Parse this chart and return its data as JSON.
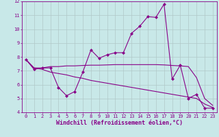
{
  "xlabel": "Windchill (Refroidissement éolien,°C)",
  "background_color": "#c8e8e8",
  "line_color": "#880088",
  "grid_color": "#b0c8c8",
  "x_values": [
    0,
    1,
    2,
    3,
    4,
    5,
    6,
    7,
    8,
    9,
    10,
    11,
    12,
    13,
    14,
    15,
    16,
    17,
    18,
    19,
    20,
    21,
    22,
    23
  ],
  "line1_y": [
    7.8,
    7.1,
    7.2,
    7.2,
    5.8,
    5.2,
    5.5,
    6.9,
    8.5,
    7.9,
    8.15,
    8.3,
    8.3,
    9.7,
    10.2,
    10.9,
    10.85,
    11.8,
    6.4,
    7.4,
    5.0,
    5.3,
    4.3,
    4.3
  ],
  "line2_y": [
    7.8,
    7.2,
    7.2,
    7.3,
    7.3,
    7.35,
    7.35,
    7.38,
    7.4,
    7.4,
    7.42,
    7.44,
    7.44,
    7.44,
    7.44,
    7.44,
    7.44,
    7.42,
    7.38,
    7.35,
    7.3,
    6.5,
    5.0,
    4.5
  ],
  "line3_y": [
    7.8,
    7.2,
    7.1,
    6.9,
    6.8,
    6.7,
    6.55,
    6.45,
    6.3,
    6.2,
    6.1,
    6.0,
    5.9,
    5.8,
    5.7,
    5.6,
    5.5,
    5.4,
    5.3,
    5.2,
    5.1,
    5.0,
    4.6,
    4.35
  ],
  "ylim": [
    4,
    12
  ],
  "xlim": [
    -0.5,
    23.5
  ],
  "yticks": [
    4,
    5,
    6,
    7,
    8,
    9,
    10,
    11,
    12
  ],
  "xticks": [
    0,
    1,
    2,
    3,
    4,
    5,
    6,
    7,
    8,
    9,
    10,
    11,
    12,
    13,
    14,
    15,
    16,
    17,
    18,
    19,
    20,
    21,
    22,
    23
  ],
  "marker": "D",
  "marker_size": 2.0,
  "line_width": 0.8,
  "tick_fontsize": 5.0,
  "xlabel_fontsize": 6.0
}
